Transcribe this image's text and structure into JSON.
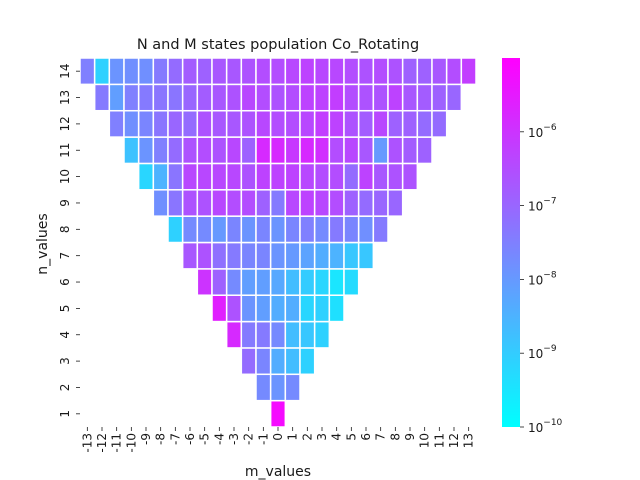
{
  "chart_data": {
    "type": "heatmap",
    "title": "N and M states population Co_Rotating",
    "xlabel": "m_values",
    "ylabel": "n_values",
    "x_ticks": [
      "-13",
      "-12",
      "-11",
      "-10",
      "-9",
      "-8",
      "-7",
      "-6",
      "-5",
      "-4",
      "-3",
      "-2",
      "-1",
      "0",
      "1",
      "2",
      "3",
      "4",
      "5",
      "6",
      "7",
      "8",
      "9",
      "10",
      "11",
      "12",
      "13"
    ],
    "y_ticks": [
      "1",
      "2",
      "3",
      "4",
      "5",
      "6",
      "7",
      "8",
      "9",
      "10",
      "11",
      "12",
      "13",
      "14"
    ],
    "colorbar": {
      "scale": "log",
      "range": [
        1e-10,
        1e-05
      ],
      "colormap": "cool",
      "color_low": "#00ffff",
      "color_high": "#ff00ff",
      "ticks": [
        {
          "base": "10",
          "exp": "−10",
          "value": 1e-10
        },
        {
          "base": "10",
          "exp": "−9",
          "value": 1e-09
        },
        {
          "base": "10",
          "exp": "−8",
          "value": 1e-08
        },
        {
          "base": "10",
          "exp": "−7",
          "value": 1e-07
        },
        {
          "base": "10",
          "exp": "−6",
          "value": 1e-06
        }
      ]
    },
    "rows": [
      {
        "n": 1,
        "m_start": 0,
        "log10_values": [
          -5.2
        ]
      },
      {
        "n": 2,
        "m_start": -1,
        "log10_values": [
          -7.7,
          -7.9,
          -7.7
        ]
      },
      {
        "n": 3,
        "m_start": -2,
        "log10_values": [
          -7.1,
          -7.6,
          -8.4,
          -8.7,
          -9.1
        ]
      },
      {
        "n": 4,
        "m_start": -3,
        "log10_values": [
          -5.8,
          -7.4,
          -7.4,
          -7.7,
          -8.7,
          -8.9,
          -9.1
        ]
      },
      {
        "n": 5,
        "m_start": -4,
        "log10_values": [
          -5.6,
          -6.6,
          -7.9,
          -8.1,
          -8.4,
          -8.4,
          -9.2,
          -9.1,
          -9.4
        ]
      },
      {
        "n": 6,
        "m_start": -5,
        "log10_values": [
          -6.0,
          -6.9,
          -7.7,
          -8.1,
          -8.1,
          -8.3,
          -8.7,
          -9.0,
          -9.2,
          -9.5,
          -9.3
        ]
      },
      {
        "n": 7,
        "m_start": -6,
        "log10_values": [
          -6.7,
          -6.6,
          -7.2,
          -7.4,
          -7.6,
          -7.6,
          -7.9,
          -8.0,
          -8.2,
          -8.4,
          -8.5,
          -8.9,
          -8.9
        ]
      },
      {
        "n": 8,
        "m_start": -7,
        "log10_values": [
          -9.1,
          -7.7,
          -7.7,
          -8.0,
          -7.6,
          -7.9,
          -7.6,
          -7.9,
          -7.6,
          -7.5,
          -7.7,
          -7.4,
          -7.6,
          -7.8,
          -7.4
        ]
      },
      {
        "n": 9,
        "m_start": -8,
        "log10_values": [
          -7.8,
          -7.3,
          -6.6,
          -6.6,
          -6.4,
          -6.5,
          -6.5,
          -6.9,
          -7.4,
          -6.4,
          -6.3,
          -6.4,
          -6.5,
          -6.9,
          -7.1,
          -7.0,
          -7.0
        ]
      },
      {
        "n": 10,
        "m_start": -9,
        "log10_values": [
          -9.2,
          -8.5,
          -7.3,
          -6.4,
          -6.4,
          -6.4,
          -6.4,
          -6.6,
          -6.3,
          -6.3,
          -6.3,
          -6.4,
          -6.5,
          -6.5,
          -7.1,
          -6.3,
          -6.7,
          -6.6,
          -6.6
        ]
      },
      {
        "n": 11,
        "m_start": -10,
        "log10_values": [
          -8.8,
          -7.9,
          -7.5,
          -7.1,
          -6.6,
          -6.5,
          -6.6,
          -6.4,
          -6.9,
          -5.8,
          -5.8,
          -6.1,
          -5.8,
          -5.9,
          -6.5,
          -6.4,
          -6.7,
          -8.0,
          -6.6,
          -6.8,
          -6.9
        ]
      },
      {
        "n": 12,
        "m_start": -11,
        "log10_values": [
          -7.5,
          -7.8,
          -7.6,
          -7.3,
          -7.0,
          -7.1,
          -6.6,
          -6.7,
          -6.7,
          -6.6,
          -6.4,
          -6.5,
          -6.5,
          -6.4,
          -6.2,
          -6.3,
          -6.6,
          -6.8,
          -6.4,
          -6.9,
          -6.9,
          -7.1,
          -7.1
        ]
      },
      {
        "n": 13,
        "m_start": -12,
        "log10_values": [
          -7.4,
          -8.1,
          -7.5,
          -7.4,
          -7.3,
          -7.3,
          -7.0,
          -6.8,
          -6.7,
          -6.6,
          -6.4,
          -6.5,
          -6.6,
          -6.5,
          -6.3,
          -6.3,
          -6.2,
          -6.5,
          -6.6,
          -6.6,
          -6.3,
          -6.7,
          -6.8,
          -6.9,
          -7.0
        ]
      },
      {
        "n": 14,
        "m_start": -13,
        "log10_values": [
          -7.5,
          -9.1,
          -7.9,
          -7.8,
          -7.8,
          -7.4,
          -7.1,
          -6.8,
          -6.9,
          -6.7,
          -6.7,
          -6.6,
          -6.5,
          -6.5,
          -6.4,
          -6.3,
          -6.4,
          -6.4,
          -6.5,
          -6.6,
          -6.5,
          -6.6,
          -6.9,
          -6.9,
          -6.7,
          -6.5,
          -6.2
        ]
      }
    ]
  }
}
